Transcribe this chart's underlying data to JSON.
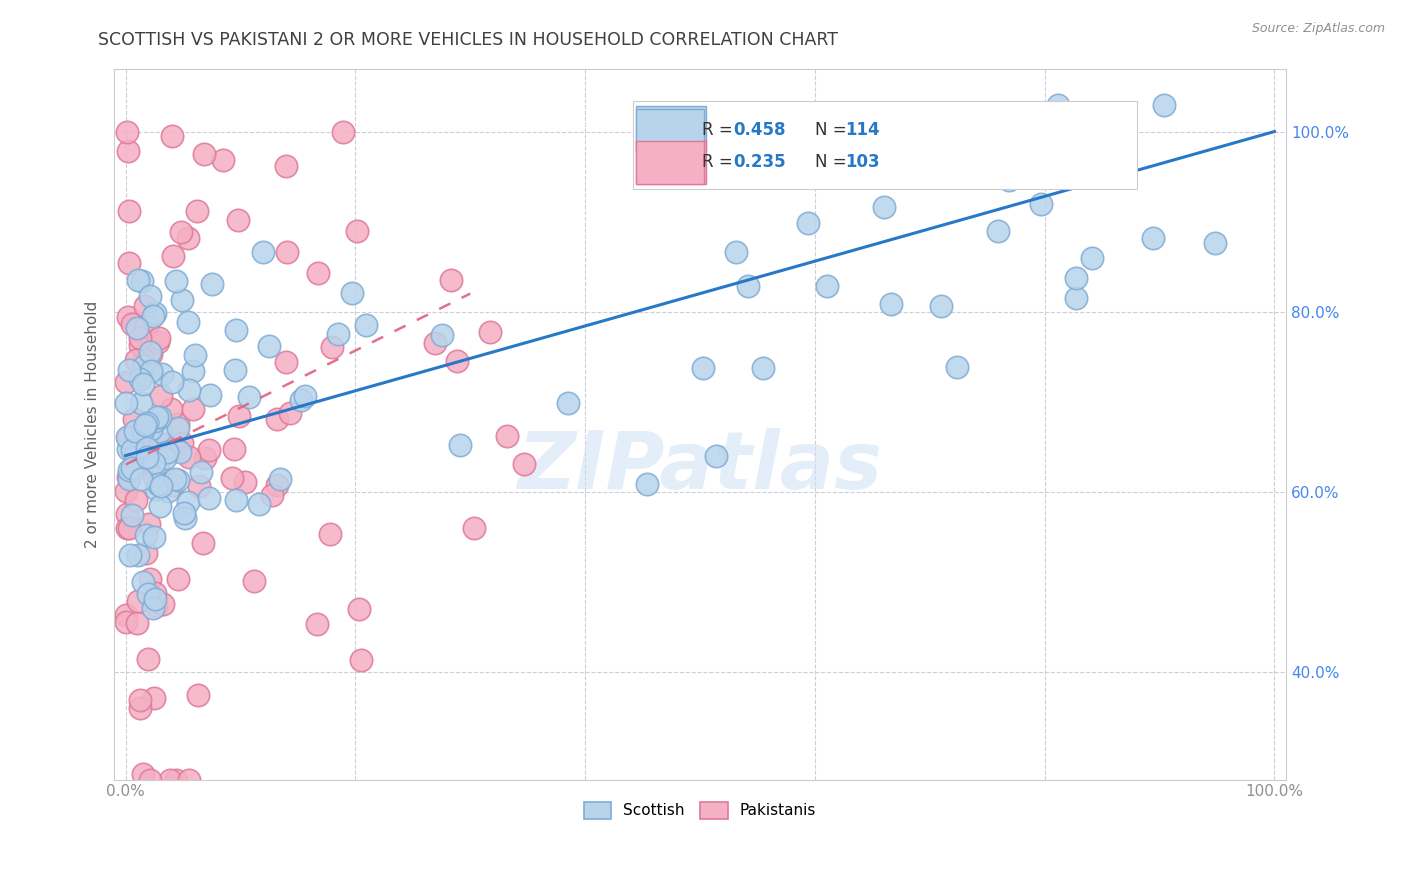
{
  "title": "SCOTTISH VS PAKISTANI 2 OR MORE VEHICLES IN HOUSEHOLD CORRELATION CHART",
  "source": "Source: ZipAtlas.com",
  "ylabel": "2 or more Vehicles in Household",
  "xlim": [
    -1,
    101
  ],
  "ylim": [
    28,
    107
  ],
  "ytick_vals": [
    40,
    60,
    80,
    100
  ],
  "yticklabels": [
    "40.0%",
    "60.0%",
    "80.0%",
    "100.0%"
  ],
  "xtick_vals": [
    0,
    20,
    40,
    60,
    80,
    100
  ],
  "xticklabels": [
    "0.0%",
    "",
    "",
    "",
    "",
    "100.0%"
  ],
  "watermark": "ZIPatlas",
  "scottish_color": "#b8d4ec",
  "scottish_edge": "#80acd4",
  "scottish_line_color": "#2878c8",
  "pakistani_color": "#f4b0c4",
  "pakistani_edge": "#e07898",
  "pakistani_line_color": "#e06080",
  "background_color": "#ffffff",
  "grid_color": "#c8c8d8",
  "title_color": "#404040",
  "axis_label_color": "#606060",
  "tick_color": "#909090",
  "yaxis_tick_color": "#4488ee",
  "legend_color": "#2878c8",
  "scottish_R": "0.458",
  "scottish_N": "114",
  "pakistani_R": "0.235",
  "pakistani_N": "103",
  "scottish_trend_x": [
    0,
    100
  ],
  "scottish_trend_y": [
    64,
    100
  ],
  "pakistani_trend_x": [
    0,
    30
  ],
  "pakistani_trend_y": [
    63,
    82
  ]
}
